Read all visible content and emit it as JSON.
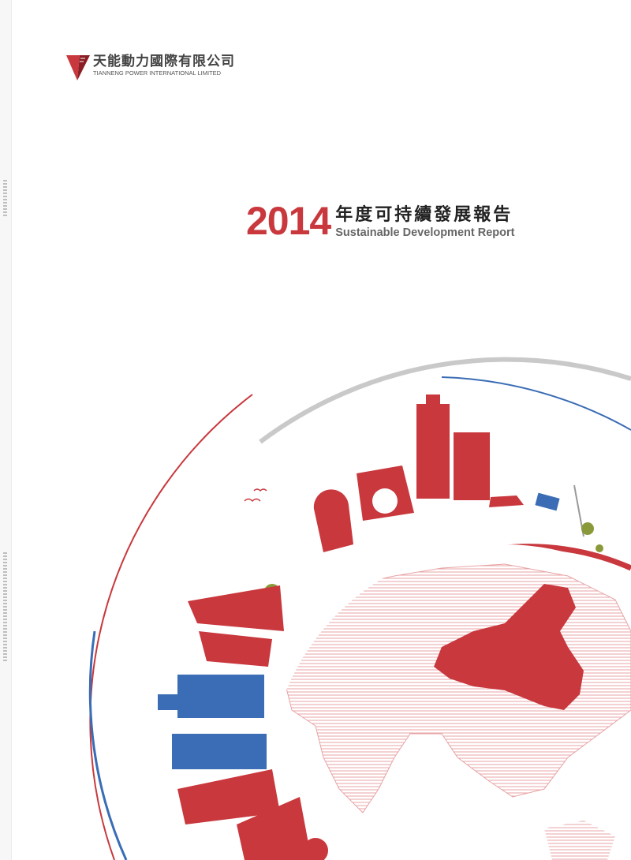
{
  "logo": {
    "name_cn": "天能動力國際有限公司",
    "name_en": "TIANNENG POWER INTERNATIONAL LIMITED"
  },
  "title": {
    "year": "2014",
    "title_cn": "年度可持續發展報告",
    "title_en": "Sustainable Development Report"
  },
  "colors": {
    "accent_red": "#c8383d",
    "blue": "#3a6db5",
    "gray_arc": "#c9c9c9"
  }
}
